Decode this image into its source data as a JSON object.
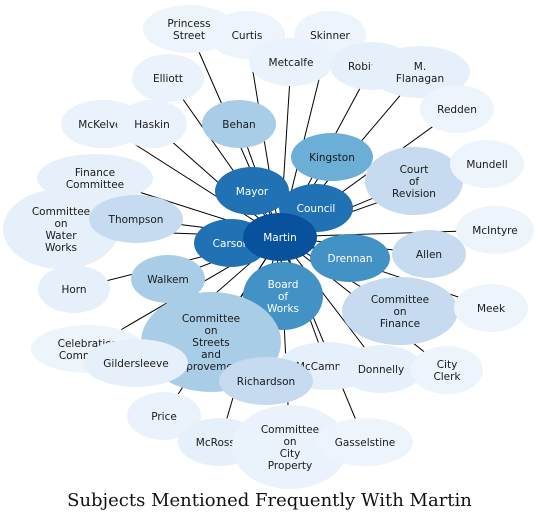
{
  "title": "Subjects Mentioned Frequently With Martin",
  "center": "Martin",
  "nodes": [
    {
      "id": "princess-street",
      "lines": [
        "Princess",
        "Street"
      ],
      "color": "#eef4fc"
    },
    {
      "id": "curtis",
      "lines": [
        "Curtis"
      ],
      "color": "#eef4fc"
    },
    {
      "id": "skinner",
      "lines": [
        "Skinner"
      ],
      "color": "#eef4fc"
    },
    {
      "id": "metcalfe",
      "lines": [
        "Metcalfe"
      ],
      "color": "#eaf2fb"
    },
    {
      "id": "robinson",
      "lines": [
        "Robinson"
      ],
      "color": "#e6f0fa"
    },
    {
      "id": "m-flanagan",
      "lines": [
        "M.",
        "Flanagan"
      ],
      "color": "#e6f0fa"
    },
    {
      "id": "elliott",
      "lines": [
        "Elliott"
      ],
      "color": "#eaf2fb"
    },
    {
      "id": "redden",
      "lines": [
        "Redden"
      ],
      "color": "#eef4fc"
    },
    {
      "id": "mckelvey",
      "lines": [
        "McKelvey"
      ],
      "color": "#eaf2fb"
    },
    {
      "id": "haskin",
      "lines": [
        "Haskin"
      ],
      "color": "#eaf2fb"
    },
    {
      "id": "behan",
      "lines": [
        "Behan"
      ],
      "color": "#a9cde6"
    },
    {
      "id": "kingston",
      "lines": [
        "Kingston"
      ],
      "color": "#6baed6"
    },
    {
      "id": "court-of-revision",
      "lines": [
        "Court",
        "of",
        "Revision"
      ],
      "color": "#c6dbef"
    },
    {
      "id": "mundell",
      "lines": [
        "Mundell"
      ],
      "color": "#eef4fc"
    },
    {
      "id": "finance-committee",
      "lines": [
        "Finance",
        "Committee"
      ],
      "color": "#e6f0fa"
    },
    {
      "id": "mayor",
      "lines": [
        "Mayor"
      ],
      "color": "#2171b5"
    },
    {
      "id": "council",
      "lines": [
        "Council"
      ],
      "color": "#2171b5"
    },
    {
      "id": "committee-water-works",
      "lines": [
        "Committee",
        "on",
        "Water",
        "Works"
      ],
      "color": "#e6f0fa"
    },
    {
      "id": "thompson",
      "lines": [
        "Thompson"
      ],
      "color": "#c6dbef"
    },
    {
      "id": "mcintyre",
      "lines": [
        "McIntyre"
      ],
      "color": "#eef4fc"
    },
    {
      "id": "carson",
      "lines": [
        "Carson"
      ],
      "color": "#2171b5"
    },
    {
      "id": "martin",
      "lines": [
        "Martin"
      ],
      "color": "#08519c"
    },
    {
      "id": "drennan",
      "lines": [
        "Drennan"
      ],
      "color": "#4292c6"
    },
    {
      "id": "allen",
      "lines": [
        "Allen"
      ],
      "color": "#c6dbef"
    },
    {
      "id": "horn",
      "lines": [
        "Horn"
      ],
      "color": "#e6f0fa"
    },
    {
      "id": "walkem",
      "lines": [
        "Walkem"
      ],
      "color": "#a9cde6"
    },
    {
      "id": "board-of-works",
      "lines": [
        "Board",
        "of",
        "Works"
      ],
      "color": "#4292c6"
    },
    {
      "id": "committee-finance",
      "lines": [
        "Committee",
        "on",
        "Finance"
      ],
      "color": "#c6dbef"
    },
    {
      "id": "meek",
      "lines": [
        "Meek"
      ],
      "color": "#eef4fc"
    },
    {
      "id": "committee-streets",
      "lines": [
        "Committee",
        "on",
        "Streets",
        "and",
        "Improvements"
      ],
      "color": "#a9cde6"
    },
    {
      "id": "celebration-committee",
      "lines": [
        "Celebration",
        "Committee"
      ],
      "color": "#eef4fc"
    },
    {
      "id": "gildersleeve",
      "lines": [
        "Gildersleeve"
      ],
      "color": "#e6f0fa"
    },
    {
      "id": "mccammon",
      "lines": [
        "McCammon"
      ],
      "color": "#e6f0fa"
    },
    {
      "id": "donnelly",
      "lines": [
        "Donnelly"
      ],
      "color": "#e6f0fa"
    },
    {
      "id": "city-clerk",
      "lines": [
        "City",
        "Clerk"
      ],
      "color": "#eef4fc"
    },
    {
      "id": "richardson",
      "lines": [
        "Richardson"
      ],
      "color": "#c6dbef"
    },
    {
      "id": "price",
      "lines": [
        "Price"
      ],
      "color": "#eaf2fb"
    },
    {
      "id": "mcrossie",
      "lines": [
        "McRossie"
      ],
      "color": "#e6f0fa"
    },
    {
      "id": "committee-city-property",
      "lines": [
        "Committee",
        "on",
        "City",
        "Property"
      ],
      "color": "#eaf2fb"
    },
    {
      "id": "gasselstine",
      "lines": [
        "Gasselstine"
      ],
      "color": "#eef4fc"
    }
  ]
}
